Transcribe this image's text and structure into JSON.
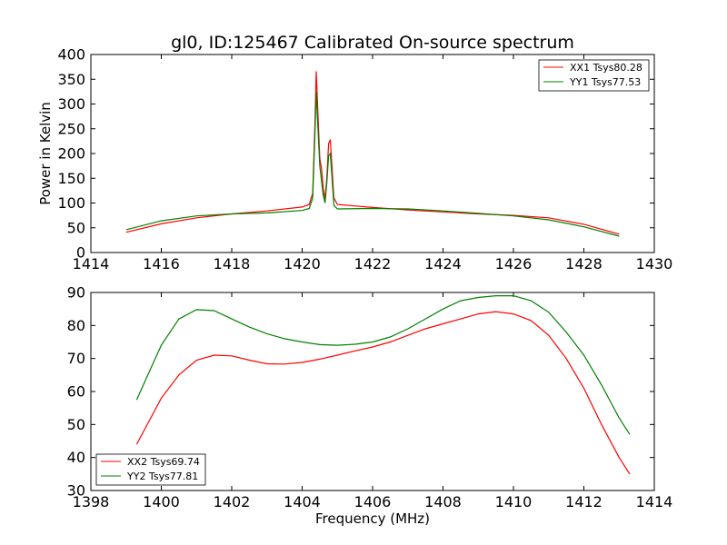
{
  "title": "gl0, ID:125467 Calibrated On-source spectrum",
  "colors": {
    "red": "#ff0000",
    "green": "#008000"
  },
  "chart_data": [
    {
      "type": "line",
      "ylabel": "Power in Kelvin",
      "xlabel": "",
      "xlim": [
        1414,
        1430
      ],
      "ylim": [
        0,
        400
      ],
      "xticks": [
        1414,
        1416,
        1418,
        1420,
        1422,
        1424,
        1426,
        1428,
        1430
      ],
      "yticks": [
        0,
        50,
        100,
        150,
        200,
        250,
        300,
        350,
        400
      ],
      "legend_position": "top-right",
      "series": [
        {
          "name": "XX1 Tsys80.28",
          "color": "#ff0000",
          "points": [
            [
              1415,
              41
            ],
            [
              1416,
              58
            ],
            [
              1417,
              70
            ],
            [
              1418,
              78
            ],
            [
              1419,
              84
            ],
            [
              1420,
              92
            ],
            [
              1420.2,
              97
            ],
            [
              1420.3,
              120
            ],
            [
              1420.36,
              250
            ],
            [
              1420.4,
              366
            ],
            [
              1420.45,
              280
            ],
            [
              1420.5,
              190
            ],
            [
              1420.55,
              170
            ],
            [
              1420.6,
              130
            ],
            [
              1420.65,
              108
            ],
            [
              1420.7,
              150
            ],
            [
              1420.75,
              220
            ],
            [
              1420.8,
              228
            ],
            [
              1420.85,
              170
            ],
            [
              1420.9,
              110
            ],
            [
              1421,
              97
            ],
            [
              1422,
              91
            ],
            [
              1423,
              86
            ],
            [
              1424,
              82
            ],
            [
              1425,
              78
            ],
            [
              1426,
              75
            ],
            [
              1427,
              70
            ],
            [
              1428,
              57
            ],
            [
              1429,
              37
            ]
          ]
        },
        {
          "name": "YY1 Tsys77.53",
          "color": "#008000",
          "points": [
            [
              1415,
              46
            ],
            [
              1416,
              64
            ],
            [
              1417,
              74
            ],
            [
              1418,
              78
            ],
            [
              1419,
              80
            ],
            [
              1420,
              85
            ],
            [
              1420.2,
              89
            ],
            [
              1420.3,
              110
            ],
            [
              1420.36,
              230
            ],
            [
              1420.4,
              325
            ],
            [
              1420.45,
              250
            ],
            [
              1420.5,
              175
            ],
            [
              1420.55,
              145
            ],
            [
              1420.6,
              115
            ],
            [
              1420.65,
              100
            ],
            [
              1420.7,
              140
            ],
            [
              1420.75,
              195
            ],
            [
              1420.8,
              200
            ],
            [
              1420.85,
              150
            ],
            [
              1420.9,
              95
            ],
            [
              1421,
              88
            ],
            [
              1422,
              89
            ],
            [
              1423,
              88
            ],
            [
              1424,
              84
            ],
            [
              1425,
              79
            ],
            [
              1426,
              74
            ],
            [
              1427,
              66
            ],
            [
              1428,
              52
            ],
            [
              1429,
              33
            ]
          ]
        }
      ]
    },
    {
      "type": "line",
      "xlabel": "Frequency (MHz)",
      "ylabel": "",
      "xlim": [
        1398,
        1414
      ],
      "ylim": [
        30,
        90
      ],
      "xticks": [
        1398,
        1400,
        1402,
        1404,
        1406,
        1408,
        1410,
        1412,
        1414
      ],
      "yticks": [
        30,
        40,
        50,
        60,
        70,
        80,
        90
      ],
      "legend_position": "bottom-left",
      "series": [
        {
          "name": "XX2 Tsys69.74",
          "color": "#ff0000",
          "points": [
            [
              1399.3,
              44
            ],
            [
              1399.7,
              52
            ],
            [
              1400,
              58
            ],
            [
              1400.5,
              65
            ],
            [
              1401,
              69.5
            ],
            [
              1401.5,
              71
            ],
            [
              1402,
              70.8
            ],
            [
              1402.5,
              69.5
            ],
            [
              1403,
              68.4
            ],
            [
              1403.5,
              68.3
            ],
            [
              1404,
              68.8
            ],
            [
              1404.5,
              69.8
            ],
            [
              1405,
              71
            ],
            [
              1405.5,
              72.3
            ],
            [
              1406,
              73.5
            ],
            [
              1406.5,
              75
            ],
            [
              1407,
              77
            ],
            [
              1407.5,
              79
            ],
            [
              1408,
              80.5
            ],
            [
              1408.5,
              82
            ],
            [
              1409,
              83.5
            ],
            [
              1409.5,
              84.2
            ],
            [
              1410,
              83.5
            ],
            [
              1410.5,
              81.5
            ],
            [
              1411,
              77
            ],
            [
              1411.5,
              70
            ],
            [
              1412,
              61
            ],
            [
              1412.5,
              50
            ],
            [
              1413,
              40
            ],
            [
              1413.3,
              35
            ]
          ]
        },
        {
          "name": "YY2 Tsys77.81",
          "color": "#008000",
          "points": [
            [
              1399.3,
              57.5
            ],
            [
              1399.7,
              67
            ],
            [
              1400,
              74
            ],
            [
              1400.5,
              82
            ],
            [
              1401,
              84.8
            ],
            [
              1401.5,
              84.5
            ],
            [
              1402,
              82
            ],
            [
              1402.5,
              79.5
            ],
            [
              1403,
              77.5
            ],
            [
              1403.5,
              76
            ],
            [
              1404,
              75
            ],
            [
              1404.5,
              74.2
            ],
            [
              1405,
              74
            ],
            [
              1405.5,
              74.3
            ],
            [
              1406,
              75
            ],
            [
              1406.5,
              76.5
            ],
            [
              1407,
              79
            ],
            [
              1407.5,
              82
            ],
            [
              1408,
              85
            ],
            [
              1408.5,
              87.5
            ],
            [
              1409,
              88.5
            ],
            [
              1409.5,
              89
            ],
            [
              1410,
              89
            ],
            [
              1410.5,
              87.5
            ],
            [
              1411,
              84
            ],
            [
              1411.5,
              78
            ],
            [
              1412,
              71
            ],
            [
              1412.5,
              62
            ],
            [
              1413,
              52
            ],
            [
              1413.3,
              47
            ]
          ]
        }
      ]
    }
  ]
}
